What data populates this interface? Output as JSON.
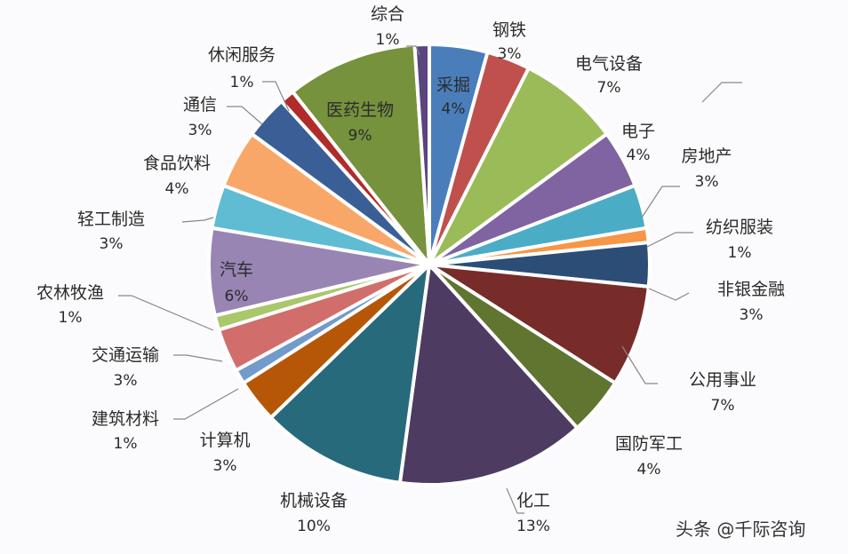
{
  "chart_data": {
    "type": "pie",
    "title": "",
    "categories": [
      "采掘",
      "钢铁",
      "电气设备",
      "电子",
      "房地产",
      "纺织服装",
      "非银金融",
      "公用事业",
      "国防军工",
      "化工",
      "机械设备",
      "计算机",
      "建筑材料",
      "交通运输",
      "农林牧渔",
      "汽车",
      "轻工制造",
      "食品饮料",
      "通信",
      "休闲服务",
      "医药生物",
      "综合"
    ],
    "values": [
      4,
      3,
      7,
      4,
      3,
      1,
      3,
      7,
      4,
      13,
      10,
      3,
      1,
      3,
      1,
      6,
      3,
      4,
      3,
      1,
      9,
      1
    ],
    "labels": [
      "4%",
      "3%",
      "7%",
      "4%",
      "3%",
      "1%",
      "3%",
      "7%",
      "4%",
      "13%",
      "10%",
      "3%",
      "1%",
      "3%",
      "1%",
      "6%",
      "3%",
      "4%",
      "3%",
      "1%",
      "9%",
      "1%"
    ],
    "colors": [
      "#4a7ebb",
      "#c0504d",
      "#9bbb59",
      "#8064a2",
      "#4bacc6",
      "#f79646",
      "#2c4d75",
      "#772c2a",
      "#5f7530",
      "#4d3b62",
      "#276a7c",
      "#b65708",
      "#729aca",
      "#d16e6b",
      "#a9c76b",
      "#9885b4",
      "#60bcd3",
      "#f9a768",
      "#3a5f96",
      "#b02c2a",
      "#76923c",
      "#5a4580"
    ],
    "legend_position": "none"
  },
  "labels": [
    {
      "name": "采掘",
      "pct": "4%"
    },
    {
      "name": "钢铁",
      "pct": "3%"
    },
    {
      "name": "电气设备",
      "pct": "7%"
    },
    {
      "name": "电子",
      "pct": "4%"
    },
    {
      "name": "房地产",
      "pct": "3%"
    },
    {
      "name": "纺织服装",
      "pct": "1%"
    },
    {
      "name": "非银金融",
      "pct": "3%"
    },
    {
      "name": "公用事业",
      "pct": "7%"
    },
    {
      "name": "国防军工",
      "pct": "4%"
    },
    {
      "name": "化工",
      "pct": "13%"
    },
    {
      "name": "机械设备",
      "pct": "10%"
    },
    {
      "name": "计算机",
      "pct": "3%"
    },
    {
      "name": "建筑材料",
      "pct": "1%"
    },
    {
      "name": "交通运输",
      "pct": "3%"
    },
    {
      "name": "农林牧渔",
      "pct": "1%"
    },
    {
      "name": "汽车",
      "pct": "6%"
    },
    {
      "name": "轻工制造",
      "pct": "3%"
    },
    {
      "name": "食品饮料",
      "pct": "4%"
    },
    {
      "name": "通信",
      "pct": "3%"
    },
    {
      "name": "休闲服务",
      "pct": "1%"
    },
    {
      "name": "医药生物",
      "pct": "9%"
    },
    {
      "name": "综合",
      "pct": "1%"
    }
  ],
  "credit": "头条 @千际咨询"
}
